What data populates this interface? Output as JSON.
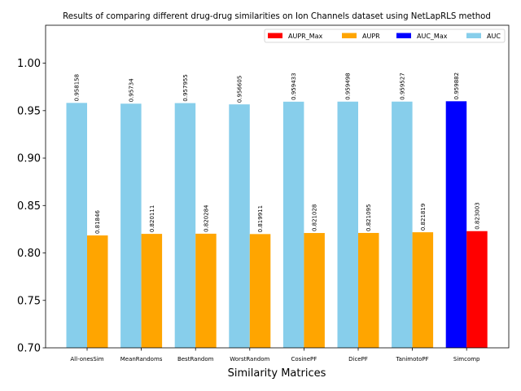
{
  "chart_data": {
    "type": "bar",
    "title": "Results of comparing different drug-drug similarities on Ion Channels dataset using NetLapRLS method",
    "xlabel": "Similarity Matrices",
    "ylabel": "",
    "ylim": [
      0.7,
      1.04
    ],
    "yticks": [
      "0.70",
      "0.75",
      "0.80",
      "0.85",
      "0.90",
      "0.95",
      "1.00"
    ],
    "yticks_values": [
      0.7,
      0.75,
      0.8,
      0.85,
      0.9,
      0.95,
      1.0
    ],
    "grid": false,
    "legend_position": "top-right",
    "categories": [
      "All-onesSim",
      "MeanRandoms",
      "BestRandom",
      "WorstRandom",
      "CosinePF",
      "DicePF",
      "TanimotoPF",
      "Simcomp"
    ],
    "series": [
      {
        "name": "AUC",
        "values": [
          0.958158,
          0.95734,
          0.957955,
          0.956605,
          0.959433,
          0.959498,
          0.959527,
          0.959882
        ],
        "labels": [
          "0.958158",
          "0.95734",
          "0.957955",
          "0.956605",
          "0.959433",
          "0.959498",
          "0.959527",
          "0.959882"
        ],
        "color": "#87CEEB",
        "highlight_color": "#0000FF"
      },
      {
        "name": "AUPR",
        "values": [
          0.81846,
          0.820111,
          0.820284,
          0.819911,
          0.821028,
          0.821095,
          0.821819,
          0.823003
        ],
        "labels": [
          "0.81846",
          "0.820111",
          "0.820284",
          "0.819911",
          "0.821028",
          "0.821095",
          "0.821819",
          "0.823003"
        ],
        "color": "#FFA500",
        "highlight_color": "#FF0000"
      }
    ],
    "highlight_category_index": 7,
    "legend": [
      {
        "label": "AUPR_Max",
        "color": "#FF0000"
      },
      {
        "label": "AUPR",
        "color": "#FFA500"
      },
      {
        "label": "AUC_Max",
        "color": "#0000FF"
      },
      {
        "label": "AUC",
        "color": "#87CEEB"
      }
    ]
  }
}
